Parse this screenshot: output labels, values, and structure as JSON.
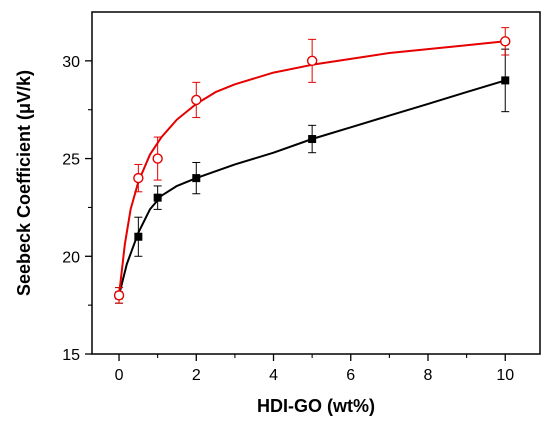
{
  "chart_data": {
    "type": "scatter",
    "xlabel": "HDI-GO (wt%)",
    "ylabel": "Seebeck Coefficient (μV/k)",
    "xlim": [
      -0.7,
      10.9
    ],
    "ylim": [
      15,
      32.5
    ],
    "x_ticks": [
      0,
      2,
      4,
      6,
      8,
      10
    ],
    "y_ticks": [
      15,
      20,
      25,
      30
    ],
    "x_tick_labels": [
      "0",
      "2",
      "4",
      "6",
      "8",
      "10"
    ],
    "y_tick_labels": [
      "15",
      "20",
      "25",
      "30"
    ],
    "grid": false,
    "series": [
      {
        "marker": "square-filled",
        "color": "#000000",
        "x": [
          0,
          0.5,
          1,
          2,
          5,
          10
        ],
        "y": [
          18,
          21,
          23,
          24,
          26,
          29
        ],
        "error": [
          0.4,
          1.0,
          0.6,
          0.8,
          0.7,
          1.6
        ]
      },
      {
        "marker": "circle-open",
        "color": "#e60000",
        "x": [
          0,
          0.5,
          1,
          2,
          5,
          10
        ],
        "y": [
          18,
          24,
          25,
          28,
          30,
          31
        ],
        "error": [
          0.4,
          0.7,
          1.1,
          0.9,
          1.1,
          0.7
        ]
      }
    ],
    "fit_curves": [
      {
        "color": "#000000",
        "x": [
          0,
          0.2,
          0.5,
          0.8,
          1.1,
          1.5,
          2,
          3,
          4,
          5,
          6,
          7,
          8,
          9,
          10
        ],
        "y": [
          18.0,
          19.6,
          21.2,
          22.4,
          23.1,
          23.6,
          24.0,
          24.7,
          25.3,
          26.0,
          26.6,
          27.2,
          27.8,
          28.4,
          29.0
        ]
      },
      {
        "color": "#e60000",
        "x": [
          0,
          0.15,
          0.3,
          0.5,
          0.8,
          1.1,
          1.5,
          2,
          2.5,
          3,
          4,
          5,
          6,
          7,
          8,
          9,
          10
        ],
        "y": [
          18.0,
          20.6,
          22.4,
          23.8,
          25.2,
          26.1,
          27.0,
          27.8,
          28.4,
          28.8,
          29.4,
          29.8,
          30.1,
          30.4,
          30.6,
          30.8,
          31.0
        ]
      }
    ]
  }
}
